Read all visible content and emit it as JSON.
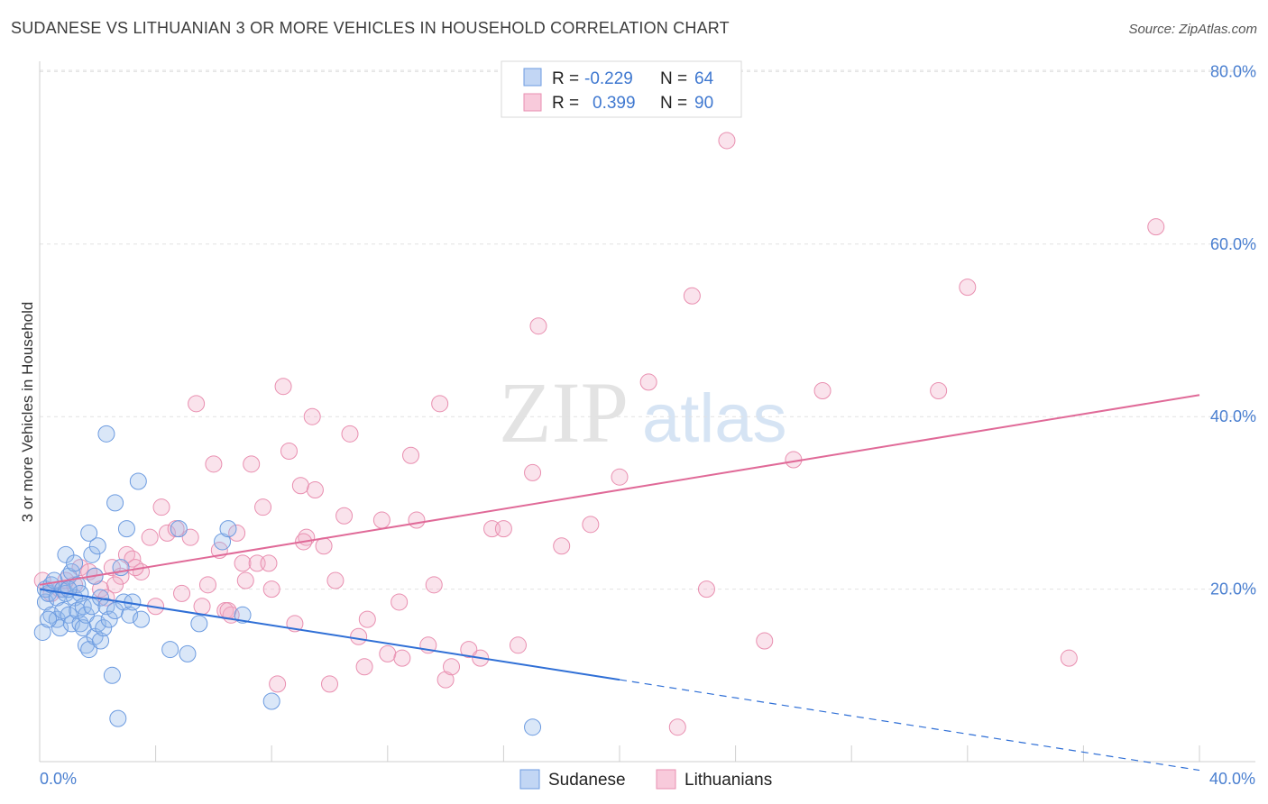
{
  "header": {
    "title": "SUDANESE VS LITHUANIAN 3 OR MORE VEHICLES IN HOUSEHOLD CORRELATION CHART",
    "source": "Source: ZipAtlas.com"
  },
  "watermark": {
    "zip": "ZIP",
    "atlas": "atlas"
  },
  "legend": {
    "r_label": "R =",
    "n_label": "N =",
    "rows": [
      {
        "series": "Sudanese",
        "r": "-0.229",
        "n": "64"
      },
      {
        "series": "Lithuanians",
        "r": "0.399",
        "n": "90"
      }
    ]
  },
  "chart_data": {
    "type": "scatter",
    "title": "SUDANESE VS LITHUANIAN 3 OR MORE VEHICLES IN HOUSEHOLD CORRELATION CHART",
    "ylabel": "3 or more Vehicles in Household",
    "xlabel": "",
    "xlim": [
      0,
      40
    ],
    "ylim": [
      0,
      85
    ],
    "x_tick_labels": [
      "0.0%",
      "40.0%"
    ],
    "y_ticks": [
      20,
      40,
      60,
      80
    ],
    "y_tick_labels": [
      "20.0%",
      "40.0%",
      "60.0%",
      "80.0%"
    ],
    "grid": true,
    "legend_position": "top-center",
    "colors": {
      "Sudanese": "#6c9be0",
      "Lithuanians": "#e98fb0",
      "sudanese_line": "#2f6fd6",
      "lithuanian_line": "#e06a98"
    },
    "series": [
      {
        "name": "Sudanese",
        "trend": {
          "x0": 0,
          "y0": 20.0,
          "x1": 20,
          "y1": 9.5,
          "dashed_to_x": 40,
          "dashed_to_y": -1.0
        },
        "points": [
          [
            0.1,
            15.0
          ],
          [
            0.2,
            18.5
          ],
          [
            0.2,
            20.0
          ],
          [
            0.3,
            19.5
          ],
          [
            0.4,
            20.5
          ],
          [
            0.4,
            17.0
          ],
          [
            0.5,
            21.0
          ],
          [
            0.6,
            16.5
          ],
          [
            0.6,
            19.0
          ],
          [
            0.7,
            15.5
          ],
          [
            0.8,
            20.0
          ],
          [
            0.8,
            17.5
          ],
          [
            0.9,
            19.5
          ],
          [
            0.9,
            24.0
          ],
          [
            1.0,
            17.0
          ],
          [
            1.0,
            21.5
          ],
          [
            1.1,
            16.0
          ],
          [
            1.1,
            22.0
          ],
          [
            1.2,
            19.0
          ],
          [
            1.2,
            23.0
          ],
          [
            1.3,
            17.5
          ],
          [
            1.3,
            20.5
          ],
          [
            1.4,
            16.0
          ],
          [
            1.4,
            19.5
          ],
          [
            1.5,
            18.0
          ],
          [
            1.5,
            15.5
          ],
          [
            1.6,
            13.5
          ],
          [
            1.6,
            17.0
          ],
          [
            1.7,
            26.5
          ],
          [
            1.7,
            13.0
          ],
          [
            1.8,
            24.0
          ],
          [
            1.8,
            18.0
          ],
          [
            1.9,
            21.5
          ],
          [
            1.9,
            14.5
          ],
          [
            2.0,
            16.0
          ],
          [
            2.0,
            25.0
          ],
          [
            2.1,
            14.0
          ],
          [
            2.1,
            19.0
          ],
          [
            2.2,
            15.5
          ],
          [
            2.3,
            38.0
          ],
          [
            2.3,
            18.0
          ],
          [
            2.4,
            16.5
          ],
          [
            2.5,
            10.0
          ],
          [
            2.6,
            17.5
          ],
          [
            2.6,
            30.0
          ],
          [
            2.7,
            5.0
          ],
          [
            2.8,
            22.5
          ],
          [
            2.9,
            18.5
          ],
          [
            3.0,
            27.0
          ],
          [
            3.1,
            17.0
          ],
          [
            3.2,
            18.5
          ],
          [
            3.4,
            32.5
          ],
          [
            3.5,
            16.5
          ],
          [
            4.5,
            13.0
          ],
          [
            4.8,
            27.0
          ],
          [
            5.1,
            12.5
          ],
          [
            5.5,
            16.0
          ],
          [
            6.3,
            25.5
          ],
          [
            6.5,
            27.0
          ],
          [
            7.0,
            17.0
          ],
          [
            8.0,
            7.0
          ],
          [
            17.0,
            4.0
          ],
          [
            0.3,
            16.5
          ],
          [
            1.0,
            20.0
          ]
        ]
      },
      {
        "name": "Lithuanians",
        "trend": {
          "x0": 0,
          "y0": 20.5,
          "x1": 40,
          "y1": 42.5
        },
        "points": [
          [
            0.1,
            21.0
          ],
          [
            0.4,
            19.5
          ],
          [
            0.7,
            20.0
          ],
          [
            1.2,
            20.5
          ],
          [
            1.4,
            22.5
          ],
          [
            1.7,
            22.0
          ],
          [
            1.9,
            21.5
          ],
          [
            2.1,
            20.0
          ],
          [
            2.3,
            19.0
          ],
          [
            2.5,
            22.5
          ],
          [
            2.8,
            21.5
          ],
          [
            3.0,
            24.0
          ],
          [
            3.2,
            23.5
          ],
          [
            3.5,
            22.0
          ],
          [
            3.8,
            26.0
          ],
          [
            4.0,
            18.0
          ],
          [
            4.2,
            29.5
          ],
          [
            4.4,
            26.5
          ],
          [
            4.7,
            27.0
          ],
          [
            4.9,
            19.5
          ],
          [
            5.2,
            26.0
          ],
          [
            5.4,
            41.5
          ],
          [
            5.6,
            18.0
          ],
          [
            5.8,
            20.5
          ],
          [
            6.0,
            34.5
          ],
          [
            6.2,
            24.5
          ],
          [
            6.4,
            17.5
          ],
          [
            6.6,
            17.0
          ],
          [
            6.8,
            26.5
          ],
          [
            7.0,
            23.0
          ],
          [
            7.1,
            21.0
          ],
          [
            7.3,
            34.5
          ],
          [
            7.5,
            23.0
          ],
          [
            7.7,
            29.5
          ],
          [
            7.9,
            23.0
          ],
          [
            8.0,
            20.0
          ],
          [
            8.2,
            9.0
          ],
          [
            8.4,
            43.5
          ],
          [
            8.6,
            36.0
          ],
          [
            8.8,
            16.0
          ],
          [
            9.0,
            32.0
          ],
          [
            9.2,
            26.0
          ],
          [
            9.4,
            40.0
          ],
          [
            9.5,
            31.5
          ],
          [
            9.8,
            25.0
          ],
          [
            10.0,
            9.0
          ],
          [
            10.2,
            21.0
          ],
          [
            10.5,
            28.5
          ],
          [
            10.7,
            38.0
          ],
          [
            11.0,
            14.5
          ],
          [
            11.2,
            11.0
          ],
          [
            11.3,
            16.5
          ],
          [
            11.8,
            28.0
          ],
          [
            12.0,
            12.5
          ],
          [
            12.4,
            18.5
          ],
          [
            12.5,
            12.0
          ],
          [
            12.8,
            35.5
          ],
          [
            13.0,
            28.0
          ],
          [
            13.4,
            13.5
          ],
          [
            13.8,
            41.5
          ],
          [
            14.0,
            9.5
          ],
          [
            14.2,
            11.0
          ],
          [
            14.8,
            13.0
          ],
          [
            15.2,
            12.0
          ],
          [
            15.6,
            27.0
          ],
          [
            16.0,
            27.0
          ],
          [
            16.5,
            13.5
          ],
          [
            17.0,
            33.5
          ],
          [
            17.2,
            50.5
          ],
          [
            18.0,
            25.0
          ],
          [
            19.0,
            27.5
          ],
          [
            20.0,
            33.0
          ],
          [
            21.0,
            44.0
          ],
          [
            22.0,
            4.0
          ],
          [
            22.5,
            54.0
          ],
          [
            23.0,
            20.0
          ],
          [
            23.7,
            72.0
          ],
          [
            25.0,
            14.0
          ],
          [
            26.0,
            35.0
          ],
          [
            27.0,
            43.0
          ],
          [
            31.0,
            43.0
          ],
          [
            32.0,
            55.0
          ],
          [
            35.5,
            12.0
          ],
          [
            38.5,
            62.0
          ],
          [
            2.6,
            20.5
          ],
          [
            3.3,
            22.5
          ],
          [
            6.5,
            17.5
          ],
          [
            9.1,
            25.5
          ],
          [
            13.6,
            20.5
          ],
          [
            0.9,
            21.0
          ]
        ]
      }
    ]
  }
}
